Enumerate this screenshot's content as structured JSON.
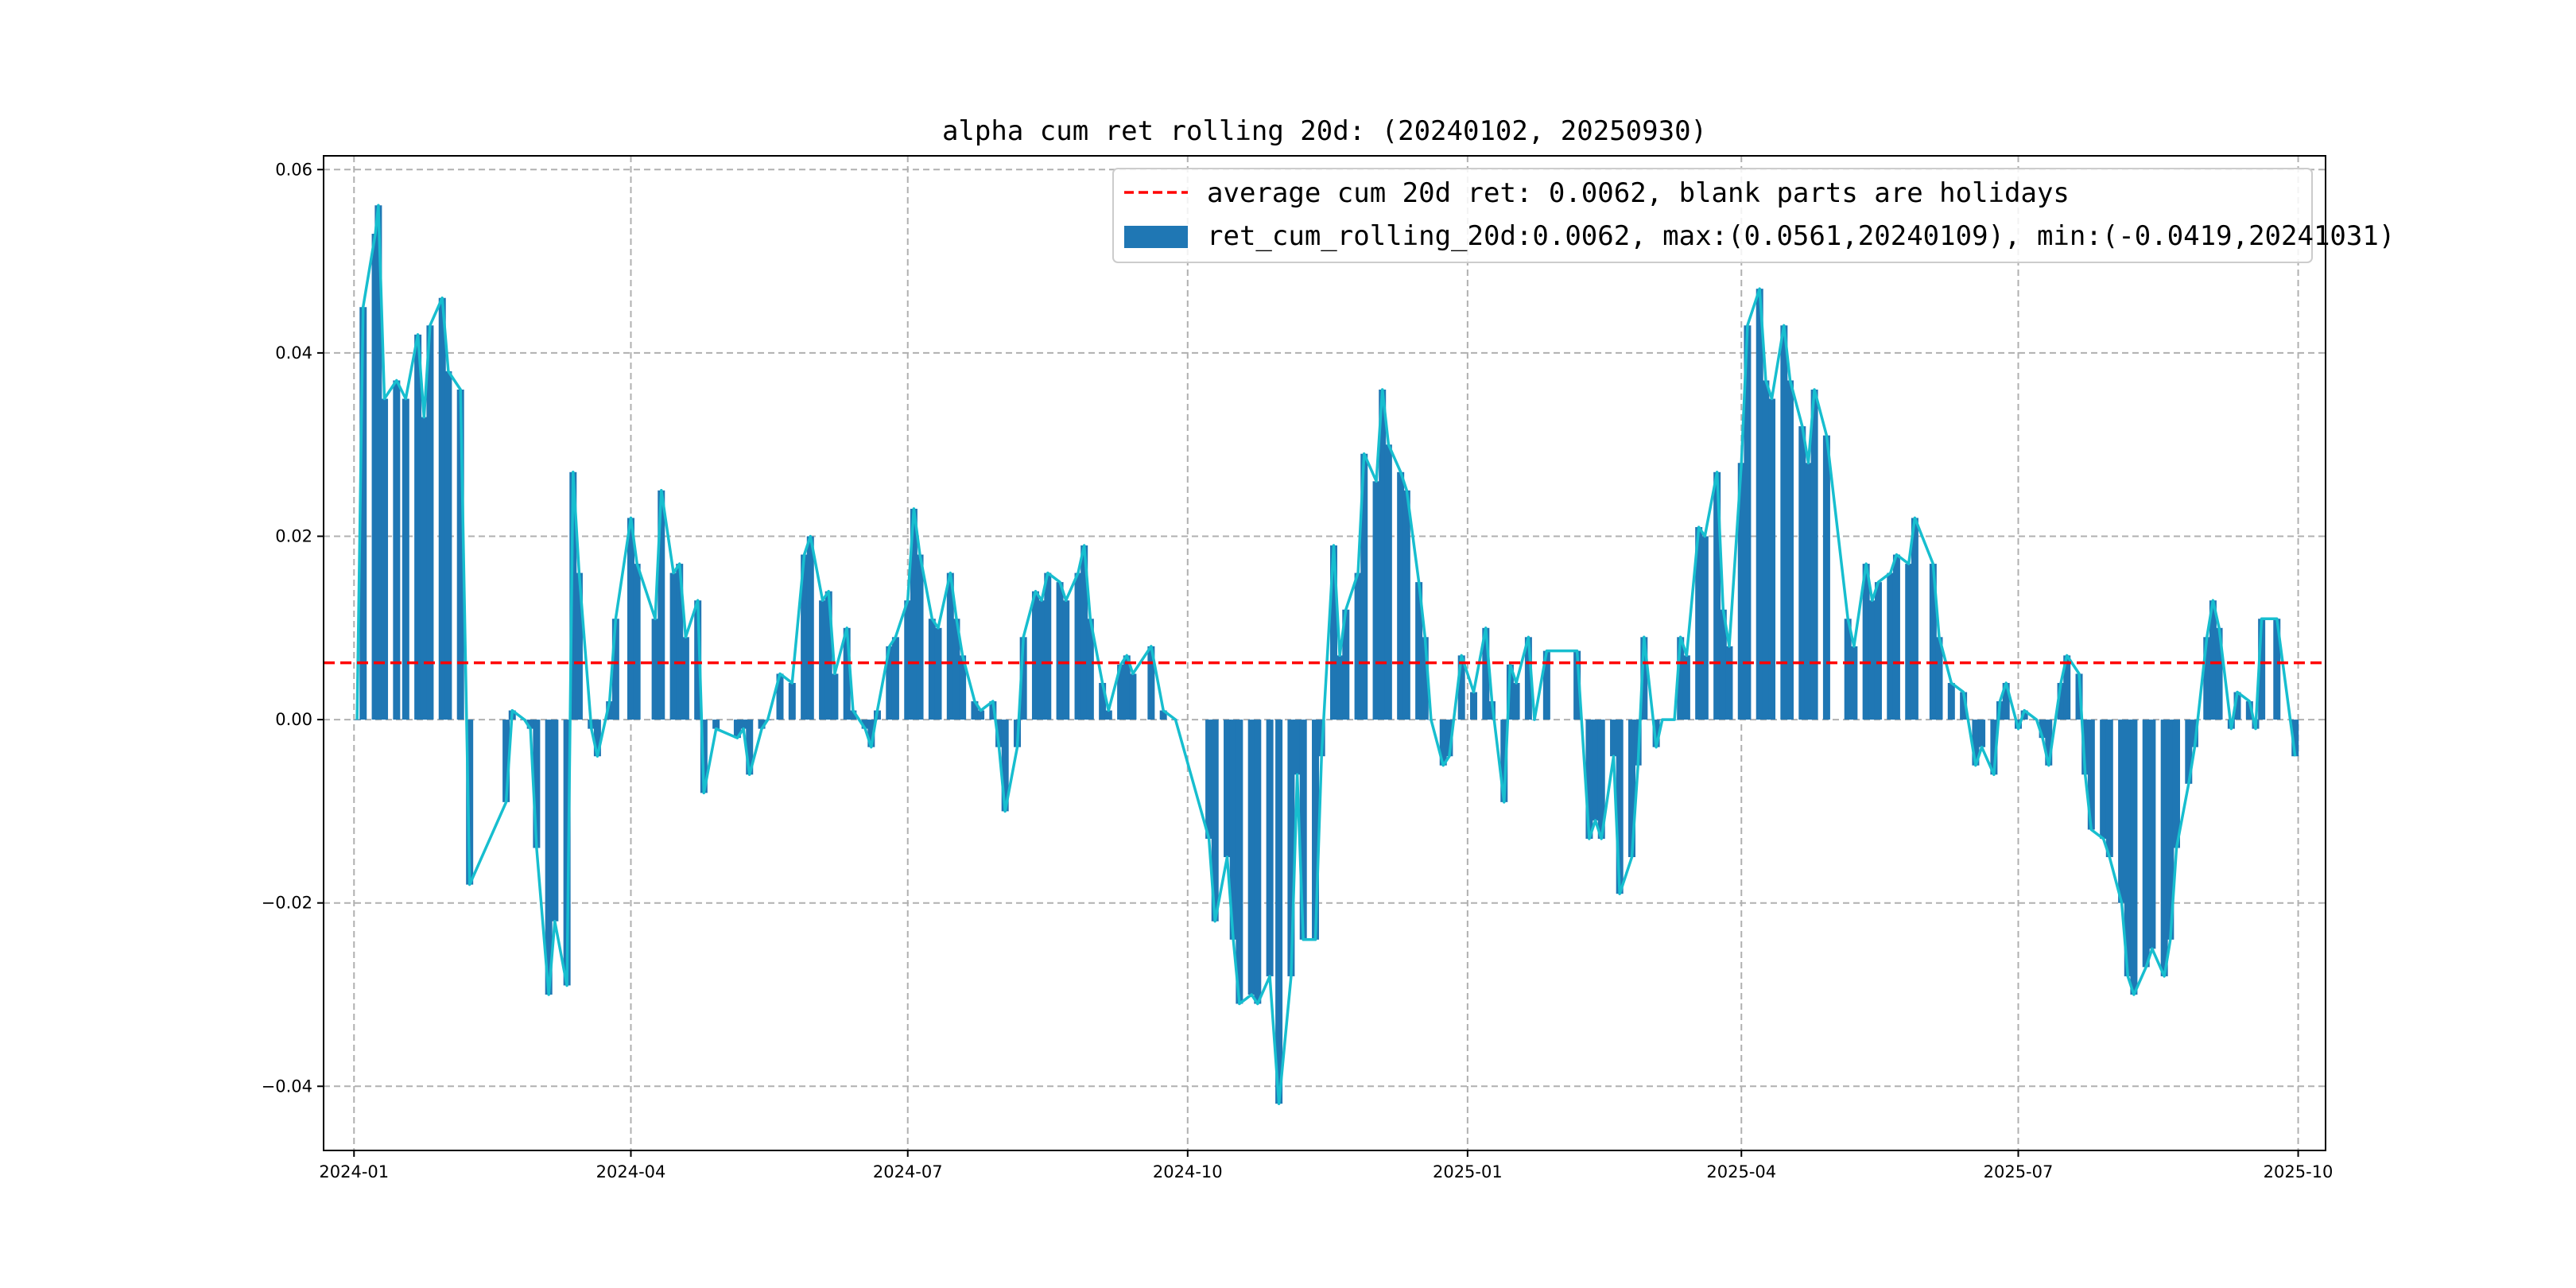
{
  "chart_data": {
    "type": "bar",
    "title": "alpha cum ret rolling 20d: (20240102, 20250930)",
    "xlabel": "",
    "ylabel": "",
    "x_range": [
      "2023-12-22",
      "2025-10-10"
    ],
    "ylim": [
      -0.047,
      0.0615
    ],
    "grid": true,
    "x_ticks": [
      {
        "date": "2024-01-01",
        "label": "2024-01"
      },
      {
        "date": "2024-04-01",
        "label": "2024-04"
      },
      {
        "date": "2024-07-01",
        "label": "2024-07"
      },
      {
        "date": "2024-10-01",
        "label": "2024-10"
      },
      {
        "date": "2025-01-01",
        "label": "2025-01"
      },
      {
        "date": "2025-04-01",
        "label": "2025-04"
      },
      {
        "date": "2025-07-01",
        "label": "2025-07"
      },
      {
        "date": "2025-10-01",
        "label": "2025-10"
      }
    ],
    "y_ticks": [
      {
        "value": -0.04,
        "label": "−0.04"
      },
      {
        "value": -0.02,
        "label": "−0.02"
      },
      {
        "value": 0.0,
        "label": "0.00"
      },
      {
        "value": 0.02,
        "label": "0.02"
      },
      {
        "value": 0.04,
        "label": "0.04"
      },
      {
        "value": 0.06,
        "label": "0.06"
      }
    ],
    "average": 0.0062,
    "legend_position": "upper-right",
    "legend": {
      "line_label": "average cum 20d ret: 0.0062, blank parts are holidays",
      "bar_label": "ret_cum_rolling_20d:0.0062, max:(0.0561,20240109), min:(-0.0419,20241031)"
    },
    "colors": {
      "bar": "#1f77b4",
      "line": "#17becf",
      "average": "#ff0000"
    },
    "series": [
      {
        "date": "2024-01-02",
        "value": 0.0
      },
      {
        "date": "2024-01-04",
        "value": 0.045
      },
      {
        "date": "2024-01-08",
        "value": 0.053
      },
      {
        "date": "2024-01-09",
        "value": 0.0561
      },
      {
        "date": "2024-01-11",
        "value": 0.035
      },
      {
        "date": "2024-01-15",
        "value": 0.037
      },
      {
        "date": "2024-01-18",
        "value": 0.035
      },
      {
        "date": "2024-01-22",
        "value": 0.042
      },
      {
        "date": "2024-01-24",
        "value": 0.033
      },
      {
        "date": "2024-01-26",
        "value": 0.043
      },
      {
        "date": "2024-01-30",
        "value": 0.046
      },
      {
        "date": "2024-02-01",
        "value": 0.038
      },
      {
        "date": "2024-02-05",
        "value": 0.036
      },
      {
        "date": "2024-02-08",
        "value": -0.018
      },
      {
        "date": "2024-02-20",
        "value": -0.009
      },
      {
        "date": "2024-02-22",
        "value": 0.001
      },
      {
        "date": "2024-02-26",
        "value": 0.0
      },
      {
        "date": "2024-02-28",
        "value": -0.001
      },
      {
        "date": "2024-03-01",
        "value": -0.014
      },
      {
        "date": "2024-03-05",
        "value": -0.03
      },
      {
        "date": "2024-03-07",
        "value": -0.022
      },
      {
        "date": "2024-03-11",
        "value": -0.029
      },
      {
        "date": "2024-03-13",
        "value": 0.027
      },
      {
        "date": "2024-03-15",
        "value": 0.016
      },
      {
        "date": "2024-03-19",
        "value": -0.001
      },
      {
        "date": "2024-03-21",
        "value": -0.004
      },
      {
        "date": "2024-03-25",
        "value": 0.002
      },
      {
        "date": "2024-03-27",
        "value": 0.011
      },
      {
        "date": "2024-04-01",
        "value": 0.022
      },
      {
        "date": "2024-04-03",
        "value": 0.017
      },
      {
        "date": "2024-04-09",
        "value": 0.011
      },
      {
        "date": "2024-04-11",
        "value": 0.025
      },
      {
        "date": "2024-04-15",
        "value": 0.016
      },
      {
        "date": "2024-04-17",
        "value": 0.017
      },
      {
        "date": "2024-04-19",
        "value": 0.009
      },
      {
        "date": "2024-04-23",
        "value": 0.013
      },
      {
        "date": "2024-04-25",
        "value": -0.008
      },
      {
        "date": "2024-04-29",
        "value": -0.001
      },
      {
        "date": "2024-05-06",
        "value": -0.002
      },
      {
        "date": "2024-05-08",
        "value": -0.001
      },
      {
        "date": "2024-05-10",
        "value": -0.006
      },
      {
        "date": "2024-05-14",
        "value": -0.001
      },
      {
        "date": "2024-05-16",
        "value": 0.0
      },
      {
        "date": "2024-05-20",
        "value": 0.005
      },
      {
        "date": "2024-05-24",
        "value": 0.004
      },
      {
        "date": "2024-05-28",
        "value": 0.018
      },
      {
        "date": "2024-05-30",
        "value": 0.02
      },
      {
        "date": "2024-06-03",
        "value": 0.013
      },
      {
        "date": "2024-06-05",
        "value": 0.014
      },
      {
        "date": "2024-06-07",
        "value": 0.005
      },
      {
        "date": "2024-06-11",
        "value": 0.01
      },
      {
        "date": "2024-06-13",
        "value": 0.001
      },
      {
        "date": "2024-06-17",
        "value": -0.001
      },
      {
        "date": "2024-06-19",
        "value": -0.003
      },
      {
        "date": "2024-06-21",
        "value": 0.001
      },
      {
        "date": "2024-06-25",
        "value": 0.008
      },
      {
        "date": "2024-06-27",
        "value": 0.009
      },
      {
        "date": "2024-07-01",
        "value": 0.013
      },
      {
        "date": "2024-07-03",
        "value": 0.023
      },
      {
        "date": "2024-07-05",
        "value": 0.018
      },
      {
        "date": "2024-07-09",
        "value": 0.011
      },
      {
        "date": "2024-07-11",
        "value": 0.01
      },
      {
        "date": "2024-07-15",
        "value": 0.016
      },
      {
        "date": "2024-07-17",
        "value": 0.011
      },
      {
        "date": "2024-07-19",
        "value": 0.007
      },
      {
        "date": "2024-07-23",
        "value": 0.002
      },
      {
        "date": "2024-07-25",
        "value": 0.001
      },
      {
        "date": "2024-07-29",
        "value": 0.002
      },
      {
        "date": "2024-07-31",
        "value": -0.003
      },
      {
        "date": "2024-08-02",
        "value": -0.01
      },
      {
        "date": "2024-08-06",
        "value": -0.003
      },
      {
        "date": "2024-08-08",
        "value": 0.009
      },
      {
        "date": "2024-08-12",
        "value": 0.014
      },
      {
        "date": "2024-08-14",
        "value": 0.013
      },
      {
        "date": "2024-08-16",
        "value": 0.016
      },
      {
        "date": "2024-08-20",
        "value": 0.015
      },
      {
        "date": "2024-08-22",
        "value": 0.013
      },
      {
        "date": "2024-08-26",
        "value": 0.016
      },
      {
        "date": "2024-08-28",
        "value": 0.019
      },
      {
        "date": "2024-08-30",
        "value": 0.011
      },
      {
        "date": "2024-09-03",
        "value": 0.004
      },
      {
        "date": "2024-09-05",
        "value": 0.001
      },
      {
        "date": "2024-09-09",
        "value": 0.006
      },
      {
        "date": "2024-09-11",
        "value": 0.007
      },
      {
        "date": "2024-09-13",
        "value": 0.005
      },
      {
        "date": "2024-09-19",
        "value": 0.008
      },
      {
        "date": "2024-09-23",
        "value": 0.001
      },
      {
        "date": "2024-09-27",
        "value": 0.0
      },
      {
        "date": "2024-10-08",
        "value": -0.013
      },
      {
        "date": "2024-10-10",
        "value": -0.022
      },
      {
        "date": "2024-10-14",
        "value": -0.015
      },
      {
        "date": "2024-10-16",
        "value": -0.024
      },
      {
        "date": "2024-10-18",
        "value": -0.031
      },
      {
        "date": "2024-10-22",
        "value": -0.03
      },
      {
        "date": "2024-10-24",
        "value": -0.031
      },
      {
        "date": "2024-10-28",
        "value": -0.028
      },
      {
        "date": "2024-10-31",
        "value": -0.0419
      },
      {
        "date": "2024-11-04",
        "value": -0.028
      },
      {
        "date": "2024-11-06",
        "value": -0.006
      },
      {
        "date": "2024-11-08",
        "value": -0.024
      },
      {
        "date": "2024-11-12",
        "value": -0.024
      },
      {
        "date": "2024-11-14",
        "value": -0.004
      },
      {
        "date": "2024-11-18",
        "value": 0.019
      },
      {
        "date": "2024-11-20",
        "value": 0.007
      },
      {
        "date": "2024-11-22",
        "value": 0.012
      },
      {
        "date": "2024-11-26",
        "value": 0.016
      },
      {
        "date": "2024-11-28",
        "value": 0.029
      },
      {
        "date": "2024-12-02",
        "value": 0.026
      },
      {
        "date": "2024-12-04",
        "value": 0.036
      },
      {
        "date": "2024-12-06",
        "value": 0.03
      },
      {
        "date": "2024-12-10",
        "value": 0.027
      },
      {
        "date": "2024-12-12",
        "value": 0.025
      },
      {
        "date": "2024-12-16",
        "value": 0.015
      },
      {
        "date": "2024-12-18",
        "value": 0.009
      },
      {
        "date": "2024-12-20",
        "value": 0.0
      },
      {
        "date": "2024-12-24",
        "value": -0.005
      },
      {
        "date": "2024-12-26",
        "value": -0.004
      },
      {
        "date": "2024-12-30",
        "value": 0.007
      },
      {
        "date": "2025-01-03",
        "value": 0.003
      },
      {
        "date": "2025-01-07",
        "value": 0.01
      },
      {
        "date": "2025-01-09",
        "value": 0.002
      },
      {
        "date": "2025-01-13",
        "value": -0.009
      },
      {
        "date": "2025-01-15",
        "value": 0.006
      },
      {
        "date": "2025-01-17",
        "value": 0.004
      },
      {
        "date": "2025-01-21",
        "value": 0.009
      },
      {
        "date": "2025-01-23",
        "value": 0.0
      },
      {
        "date": "2025-01-27",
        "value": 0.0075
      },
      {
        "date": "2025-02-06",
        "value": 0.0075
      },
      {
        "date": "2025-02-10",
        "value": -0.013
      },
      {
        "date": "2025-02-12",
        "value": -0.011
      },
      {
        "date": "2025-02-14",
        "value": -0.013
      },
      {
        "date": "2025-02-18",
        "value": -0.004
      },
      {
        "date": "2025-02-20",
        "value": -0.019
      },
      {
        "date": "2025-02-24",
        "value": -0.015
      },
      {
        "date": "2025-02-26",
        "value": -0.005
      },
      {
        "date": "2025-02-28",
        "value": 0.009
      },
      {
        "date": "2025-03-04",
        "value": -0.003
      },
      {
        "date": "2025-03-06",
        "value": 0.0
      },
      {
        "date": "2025-03-10",
        "value": 0.0
      },
      {
        "date": "2025-03-12",
        "value": 0.009
      },
      {
        "date": "2025-03-14",
        "value": 0.007
      },
      {
        "date": "2025-03-18",
        "value": 0.021
      },
      {
        "date": "2025-03-20",
        "value": 0.02
      },
      {
        "date": "2025-03-24",
        "value": 0.027
      },
      {
        "date": "2025-03-26",
        "value": 0.012
      },
      {
        "date": "2025-03-28",
        "value": 0.008
      },
      {
        "date": "2025-04-01",
        "value": 0.028
      },
      {
        "date": "2025-04-03",
        "value": 0.043
      },
      {
        "date": "2025-04-07",
        "value": 0.047
      },
      {
        "date": "2025-04-09",
        "value": 0.037
      },
      {
        "date": "2025-04-11",
        "value": 0.035
      },
      {
        "date": "2025-04-15",
        "value": 0.043
      },
      {
        "date": "2025-04-17",
        "value": 0.037
      },
      {
        "date": "2025-04-21",
        "value": 0.032
      },
      {
        "date": "2025-04-23",
        "value": 0.028
      },
      {
        "date": "2025-04-25",
        "value": 0.036
      },
      {
        "date": "2025-04-29",
        "value": 0.031
      },
      {
        "date": "2025-05-06",
        "value": 0.011
      },
      {
        "date": "2025-05-08",
        "value": 0.008
      },
      {
        "date": "2025-05-12",
        "value": 0.017
      },
      {
        "date": "2025-05-14",
        "value": 0.013
      },
      {
        "date": "2025-05-16",
        "value": 0.015
      },
      {
        "date": "2025-05-20",
        "value": 0.016
      },
      {
        "date": "2025-05-22",
        "value": 0.018
      },
      {
        "date": "2025-05-26",
        "value": 0.017
      },
      {
        "date": "2025-05-28",
        "value": 0.022
      },
      {
        "date": "2025-06-03",
        "value": 0.017
      },
      {
        "date": "2025-06-05",
        "value": 0.009
      },
      {
        "date": "2025-06-09",
        "value": 0.004
      },
      {
        "date": "2025-06-13",
        "value": 0.003
      },
      {
        "date": "2025-06-17",
        "value": -0.005
      },
      {
        "date": "2025-06-19",
        "value": -0.003
      },
      {
        "date": "2025-06-23",
        "value": -0.006
      },
      {
        "date": "2025-06-25",
        "value": 0.002
      },
      {
        "date": "2025-06-27",
        "value": 0.004
      },
      {
        "date": "2025-07-01",
        "value": -0.001
      },
      {
        "date": "2025-07-03",
        "value": 0.001
      },
      {
        "date": "2025-07-07",
        "value": 0.0
      },
      {
        "date": "2025-07-09",
        "value": -0.002
      },
      {
        "date": "2025-07-11",
        "value": -0.005
      },
      {
        "date": "2025-07-15",
        "value": 0.004
      },
      {
        "date": "2025-07-17",
        "value": 0.007
      },
      {
        "date": "2025-07-21",
        "value": 0.005
      },
      {
        "date": "2025-07-23",
        "value": -0.006
      },
      {
        "date": "2025-07-25",
        "value": -0.012
      },
      {
        "date": "2025-07-29",
        "value": -0.013
      },
      {
        "date": "2025-07-31",
        "value": -0.015
      },
      {
        "date": "2025-08-04",
        "value": -0.02
      },
      {
        "date": "2025-08-06",
        "value": -0.028
      },
      {
        "date": "2025-08-08",
        "value": -0.03
      },
      {
        "date": "2025-08-12",
        "value": -0.027
      },
      {
        "date": "2025-08-14",
        "value": -0.025
      },
      {
        "date": "2025-08-18",
        "value": -0.028
      },
      {
        "date": "2025-08-20",
        "value": -0.024
      },
      {
        "date": "2025-08-22",
        "value": -0.014
      },
      {
        "date": "2025-08-26",
        "value": -0.007
      },
      {
        "date": "2025-08-28",
        "value": -0.003
      },
      {
        "date": "2025-09-01",
        "value": 0.009
      },
      {
        "date": "2025-09-03",
        "value": 0.013
      },
      {
        "date": "2025-09-05",
        "value": 0.01
      },
      {
        "date": "2025-09-09",
        "value": -0.001
      },
      {
        "date": "2025-09-11",
        "value": 0.003
      },
      {
        "date": "2025-09-15",
        "value": 0.002
      },
      {
        "date": "2025-09-17",
        "value": -0.001
      },
      {
        "date": "2025-09-19",
        "value": 0.011
      },
      {
        "date": "2025-09-24",
        "value": 0.011
      },
      {
        "date": "2025-09-30",
        "value": -0.004
      }
    ]
  }
}
